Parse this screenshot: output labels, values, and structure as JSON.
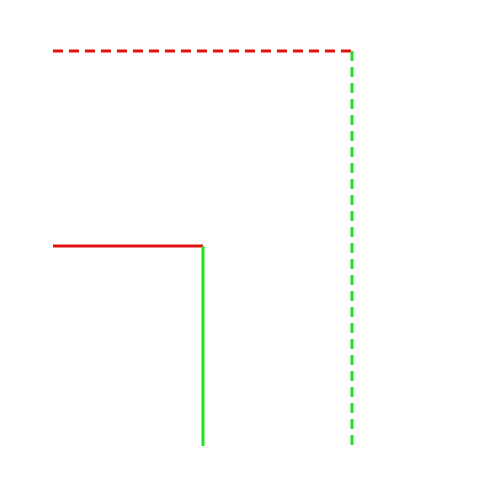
{
  "background": "#ffffff",
  "colors": {
    "red": "#e01010",
    "green": "#22e022"
  },
  "segments": [
    {
      "name": "dashed-top-horizontal-line",
      "color": "red",
      "style": "dashed"
    },
    {
      "name": "dashed-right-vertical-line",
      "color": "green",
      "style": "dashed"
    },
    {
      "name": "solid-middle-horizontal-line",
      "color": "red",
      "style": "solid"
    },
    {
      "name": "solid-middle-vertical-line",
      "color": "green",
      "style": "solid"
    }
  ]
}
